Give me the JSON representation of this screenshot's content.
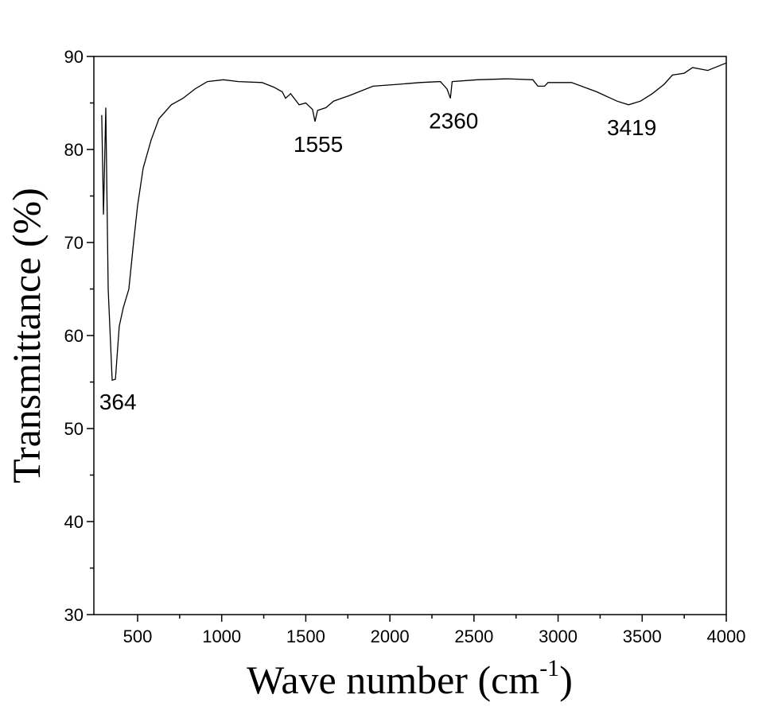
{
  "chart_data": {
    "type": "line",
    "x_label": [
      "Wave number (cm",
      "-1",
      ")"
    ],
    "y_label": "Transmittance (%)",
    "xlim": [
      240,
      4000
    ],
    "xticks": [
      500,
      1000,
      1500,
      2000,
      2500,
      3000,
      3500,
      4000
    ],
    "ylim": [
      30,
      90
    ],
    "yticks": [
      30,
      40,
      50,
      60,
      70,
      80,
      90
    ],
    "grid": false,
    "series": [
      {
        "color": "#000000",
        "x": [
          287,
          297,
          311,
          325,
          349,
          368,
          391,
          415,
          448,
          476,
          500,
          533,
          580,
          627,
          700,
          770,
          840,
          915,
          1010,
          1100,
          1240,
          1310,
          1360,
          1380,
          1410,
          1460,
          1500,
          1540,
          1555,
          1570,
          1620,
          1665,
          1760,
          1900,
          2045,
          2180,
          2300,
          2340,
          2360,
          2370,
          2520,
          2700,
          2850,
          2880,
          2920,
          2940,
          3080,
          3230,
          3350,
          3419,
          3490,
          3560,
          3630,
          3680,
          3750,
          3800,
          3890,
          4000
        ],
        "values": [
          83.7,
          73,
          84.5,
          65,
          55.2,
          55.3,
          61,
          63,
          65,
          70,
          74,
          78,
          81,
          83.3,
          84.8,
          85.5,
          86.5,
          87.3,
          87.5,
          87.3,
          87.2,
          86.7,
          86.2,
          85.5,
          86,
          84.8,
          85,
          84.3,
          83,
          84.2,
          84.5,
          85.2,
          85.8,
          86.8,
          87,
          87.2,
          87.3,
          86.5,
          85.5,
          87.3,
          87.5,
          87.6,
          87.5,
          86.8,
          86.8,
          87.2,
          87.2,
          86.2,
          85.2,
          84.8,
          85.2,
          86,
          87,
          88,
          88.2,
          88.8,
          88.5,
          89.3
        ]
      }
    ],
    "annotations": [
      364,
      1555,
      2360,
      3419
    ]
  }
}
